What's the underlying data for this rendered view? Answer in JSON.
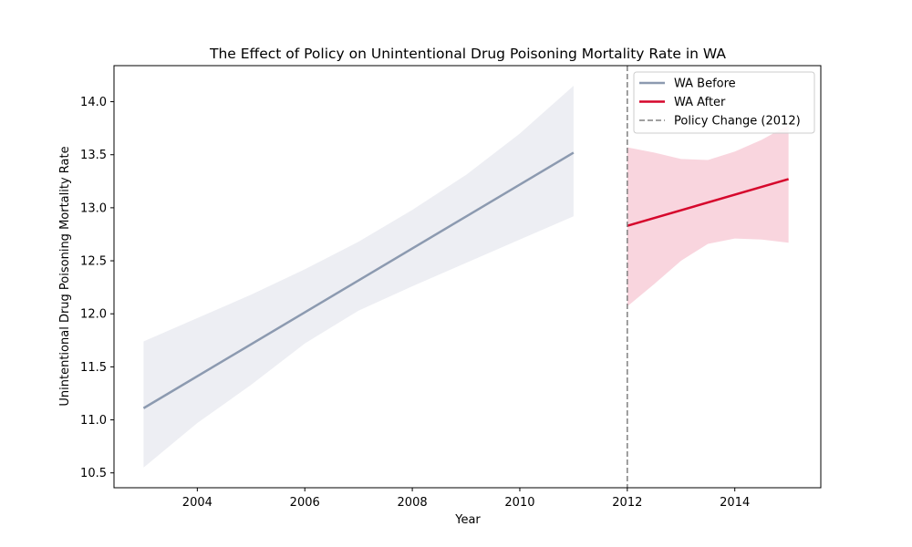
{
  "chart_data": {
    "type": "line",
    "title": "The Effect of Policy on Unintentional Drug Poisoning Mortality Rate in WA",
    "xlabel": "Year",
    "ylabel": "Unintentional Drug Poisoning Mortality Rate",
    "xlim": [
      2002.45,
      2015.6
    ],
    "ylim": [
      10.36,
      14.34
    ],
    "xticks": [
      2004,
      2006,
      2008,
      2010,
      2012,
      2014
    ],
    "yticks": [
      10.5,
      11.0,
      11.5,
      12.0,
      12.5,
      13.0,
      13.5,
      14.0
    ],
    "grid": false,
    "legend_position": "top-right",
    "series": [
      {
        "name": "WA Before",
        "color": "#8c9ab0",
        "band_color": "#edeef3",
        "x": [
          2003,
          2011
        ],
        "y": [
          11.11,
          13.52
        ],
        "band": {
          "x": [
            2003,
            2004,
            2005,
            2006,
            2007,
            2008,
            2009,
            2010,
            2011
          ],
          "upper": [
            11.74,
            11.96,
            12.18,
            12.42,
            12.68,
            12.98,
            13.31,
            13.7,
            14.15
          ],
          "lower": [
            10.55,
            10.97,
            11.33,
            11.72,
            12.03,
            12.26,
            12.48,
            12.7,
            12.92
          ]
        }
      },
      {
        "name": "WA After",
        "color": "#d6072c",
        "band_color": "#f9d5de",
        "x": [
          2012,
          2015
        ],
        "y": [
          12.83,
          13.27
        ],
        "band": {
          "x": [
            2012,
            2012.5,
            2013,
            2013.5,
            2014,
            2014.5,
            2015
          ],
          "upper": [
            13.57,
            13.52,
            13.46,
            13.45,
            13.53,
            13.64,
            13.78
          ],
          "lower": [
            12.07,
            12.28,
            12.5,
            12.66,
            12.71,
            12.7,
            12.67
          ]
        }
      }
    ],
    "annotations": [
      {
        "type": "vline",
        "x": 2012,
        "name": "Policy Change (2012)",
        "color": "#808080",
        "style": "dashed"
      }
    ]
  }
}
